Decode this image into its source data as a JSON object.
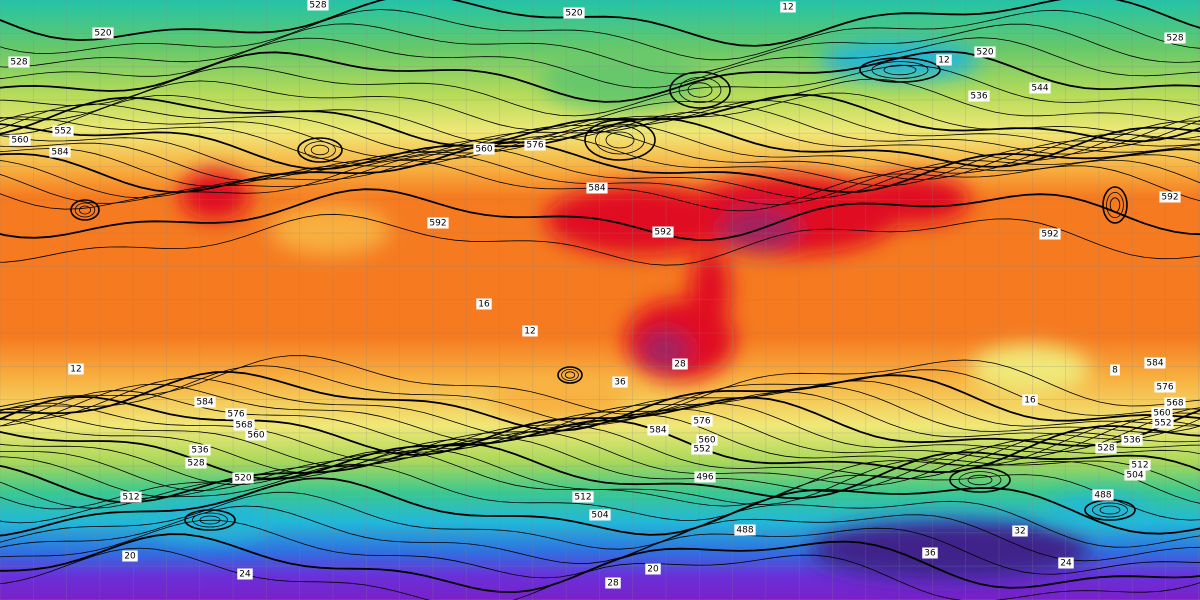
{
  "contour_labels": [
    "528",
    "520",
    "12",
    "520",
    "528",
    "520",
    "12",
    "528",
    "536",
    "544",
    "560",
    "552",
    "584",
    "560",
    "576",
    "584",
    "592",
    "592",
    "592",
    "592",
    "16",
    "12",
    "12",
    "584",
    "576",
    "568",
    "560",
    "536",
    "528",
    "520",
    "512",
    "512",
    "504",
    "488",
    "496",
    "504",
    "512",
    "488",
    "584",
    "576",
    "568",
    "560",
    "552",
    "528",
    "536",
    "20",
    "24",
    "28",
    "24",
    "32",
    "36",
    "20",
    "584",
    "576",
    "560",
    "552",
    "16",
    "8",
    "36",
    "28"
  ]
}
